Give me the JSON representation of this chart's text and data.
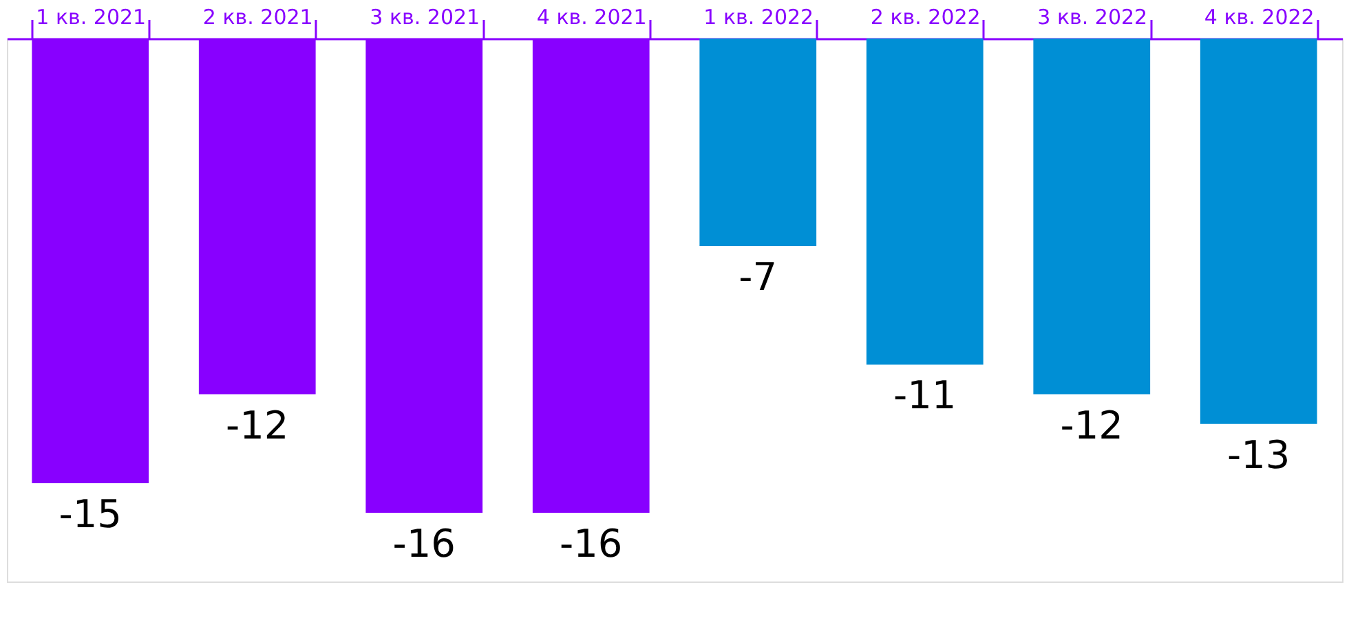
{
  "chart_data": {
    "type": "bar",
    "categories": [
      "1 кв. 2021",
      "2 кв. 2021",
      "3 кв. 2021",
      "4 кв. 2021",
      "1 кв. 2022",
      "2 кв. 2022",
      "3 кв. 2022",
      "4 кв. 2022"
    ],
    "values": [
      -15,
      -12,
      -16,
      -16,
      -7,
      -11,
      -12,
      -13
    ],
    "colors": [
      "#8800ff",
      "#8800ff",
      "#8800ff",
      "#8800ff",
      "#008fd5",
      "#008fd5",
      "#008fd5",
      "#008fd5"
    ],
    "data_labels": true,
    "grid": false
  }
}
